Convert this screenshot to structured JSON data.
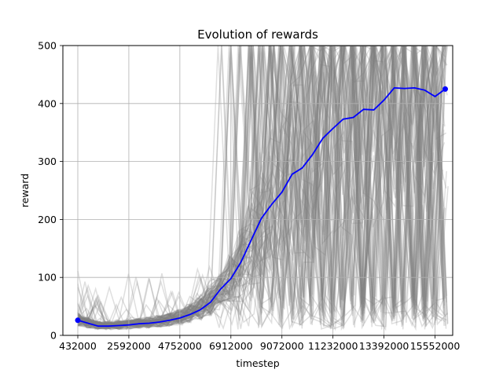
{
  "chart_data": {
    "type": "line",
    "title": "Evolution of rewards",
    "xlabel": "timestep",
    "ylabel": "reward",
    "xlim": [
      -200000,
      16300000
    ],
    "ylim": [
      0,
      500
    ],
    "xticks": [
      432000,
      2592000,
      4752000,
      6912000,
      9072000,
      11232000,
      13392000,
      15552000
    ],
    "xtick_labels": [
      "432000",
      "2592000",
      "4752000",
      "6912000",
      "9072000",
      "11232000",
      "13392000",
      "15552000"
    ],
    "yticks": [
      0,
      100,
      200,
      300,
      400,
      500
    ],
    "ytick_labels": [
      "0",
      "100",
      "200",
      "300",
      "400",
      "500"
    ],
    "grid": true,
    "individual_runs_color": "#808080",
    "individual_runs_alpha": 0.25,
    "series": [
      {
        "color": "#0000ff",
        "x": [
          432000,
          864000,
          1296000,
          1728000,
          2160000,
          2592000,
          3024000,
          3456000,
          3888000,
          4320000,
          4752000,
          5184000,
          5616000,
          6048000,
          6480000,
          6912000,
          7344000,
          7776000,
          8208000,
          8640000,
          9072000,
          9504000,
          9936000,
          10368000,
          10800000,
          11232000,
          11664000,
          12096000,
          12528000,
          12960000,
          13392000,
          13824000,
          14256000,
          14688000,
          15120000,
          15552000,
          15984000
        ],
        "values": [
          26,
          21,
          16,
          16,
          17,
          18,
          20,
          21,
          23,
          26,
          30,
          36,
          44,
          57,
          80,
          98,
          127,
          165,
          202,
          226,
          247,
          278,
          289,
          312,
          340,
          357,
          373,
          376,
          390,
          389,
          406,
          427,
          426,
          427,
          423,
          412,
          425
        ]
      }
    ]
  }
}
